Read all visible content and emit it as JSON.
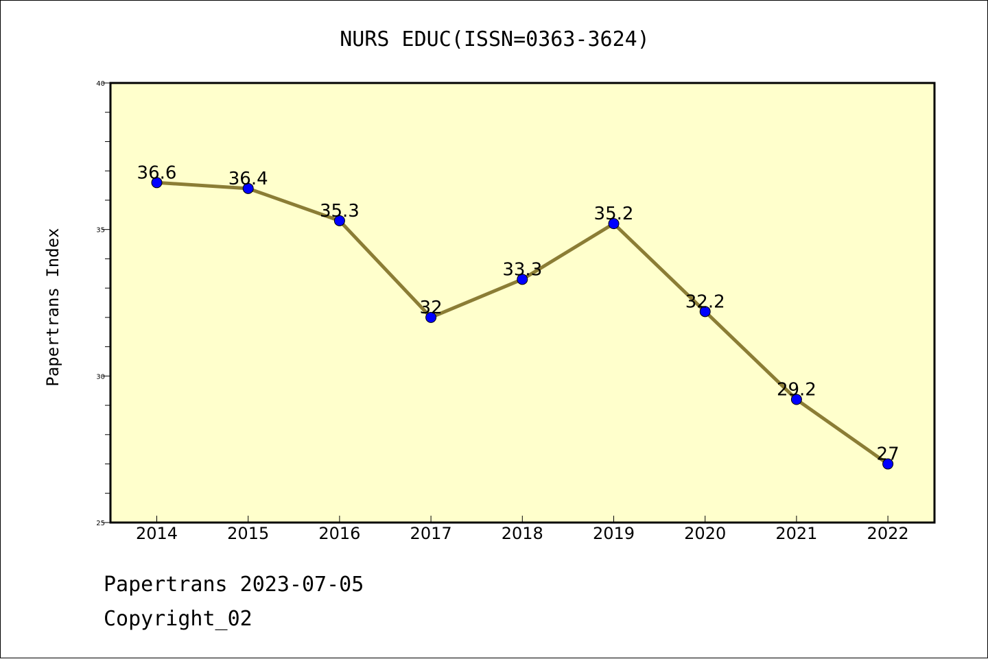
{
  "chart_data": {
    "type": "line",
    "title": "NURS EDUC(ISSN=0363-3624)",
    "xlabel": "",
    "ylabel": "Papertrans Index",
    "categories": [
      "2014",
      "2015",
      "2016",
      "2017",
      "2018",
      "2019",
      "2020",
      "2021",
      "2022"
    ],
    "series": [
      {
        "values": [
          36.6,
          36.4,
          35.3,
          32,
          33.3,
          35.2,
          32.2,
          29.2,
          27
        ],
        "labels": [
          "36.6",
          "36.4",
          "35.3",
          "32",
          "33.3",
          "35.2",
          "32.2",
          "29.2",
          "27"
        ]
      }
    ],
    "ylim": [
      25,
      40
    ],
    "yticks": [
      "25",
      "30",
      "35",
      "40"
    ],
    "grid": false,
    "legend": "none",
    "colors": {
      "plot_background": "#ffffcc",
      "line": "#8b7d35",
      "marker": "#0000ff"
    }
  },
  "footer": {
    "line1": "Papertrans 2023-07-05",
    "line2": "Copyright_02"
  }
}
